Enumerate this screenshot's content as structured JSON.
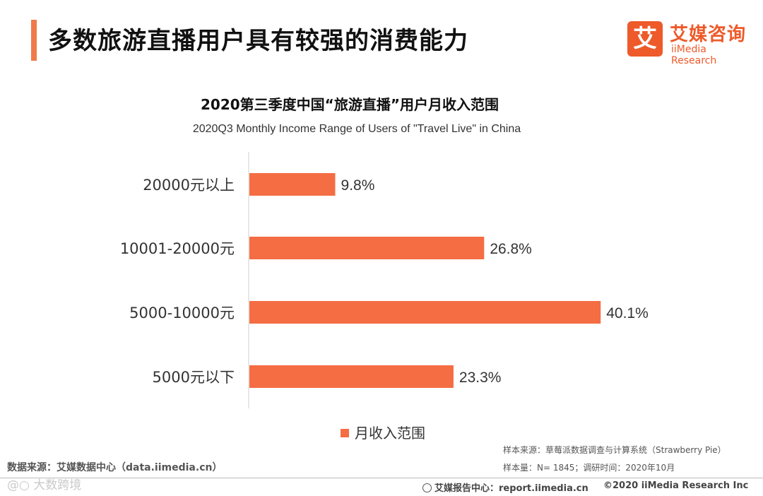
{
  "header": {
    "title": "多数旅游直播用户具有较强的消费能力"
  },
  "logo": {
    "mark": "艾",
    "name_cn": "艾媒咨询",
    "name_en": "iiMedia Research"
  },
  "chart_data": {
    "type": "bar",
    "orientation": "horizontal",
    "title": "2020第三季度中国“旅游直播”用户月收入范围",
    "subtitle": "2020Q3 Monthly Income Range of Users of \"Travel Live\" in China",
    "categories": [
      "20000元以上",
      "10001-20000元",
      "5000-10000元",
      "5000元以下"
    ],
    "values": [
      9.8,
      26.8,
      40.1,
      23.3
    ],
    "value_labels": [
      "9.8%",
      "26.8%",
      "40.1%",
      "23.3%"
    ],
    "unit": "%",
    "xlim": [
      0,
      50
    ],
    "legend": "月收入范围",
    "legend_position": "bottom-center",
    "bar_color": "#f46d43",
    "grid": false
  },
  "sources": {
    "sample_source": "样本来源：草莓派数据调查与计算系统（Strawberry Pie）",
    "sample_size": "样本量：N= 1845；调研时间：2020年10月",
    "data_source": "数据来源：艾媒数据中心（data.iimedia.cn）"
  },
  "watermark": "@○ 大数跨境",
  "footer": {
    "report_center": "艾媒报告中心：report.iimedia.cn",
    "copyright": "©2020  iiMedia Research  Inc"
  }
}
